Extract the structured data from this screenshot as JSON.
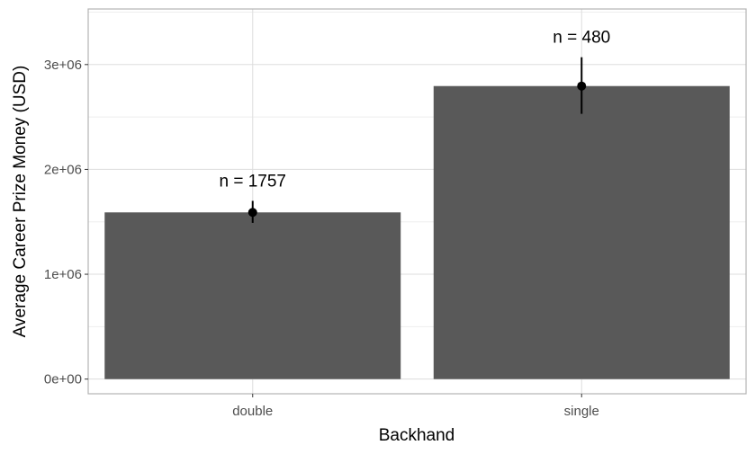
{
  "chart_data": {
    "type": "bar",
    "categories": [
      "double",
      "single"
    ],
    "values": [
      1590000,
      2795000
    ],
    "error_bars": [
      {
        "low": 1490000,
        "high": 1700000
      },
      {
        "low": 2530000,
        "high": 3070000
      }
    ],
    "data_labels": [
      "n = 1757",
      "n = 480"
    ],
    "xlabel": "Backhand",
    "ylabel": "Average Career Prize Money (USD)",
    "ylim": [
      -140000,
      3530000
    ],
    "yticks": [
      0,
      1000000,
      2000000,
      3000000
    ],
    "ytick_labels": [
      "0e+00",
      "1e+06",
      "2e+06",
      "3e+06"
    ],
    "grid": true,
    "colors": {
      "bar": "#595959",
      "grid_major": "#dddddd",
      "grid_minor": "#eeeeee",
      "panel_border": "#b3b3b3",
      "point": "#000000"
    }
  }
}
